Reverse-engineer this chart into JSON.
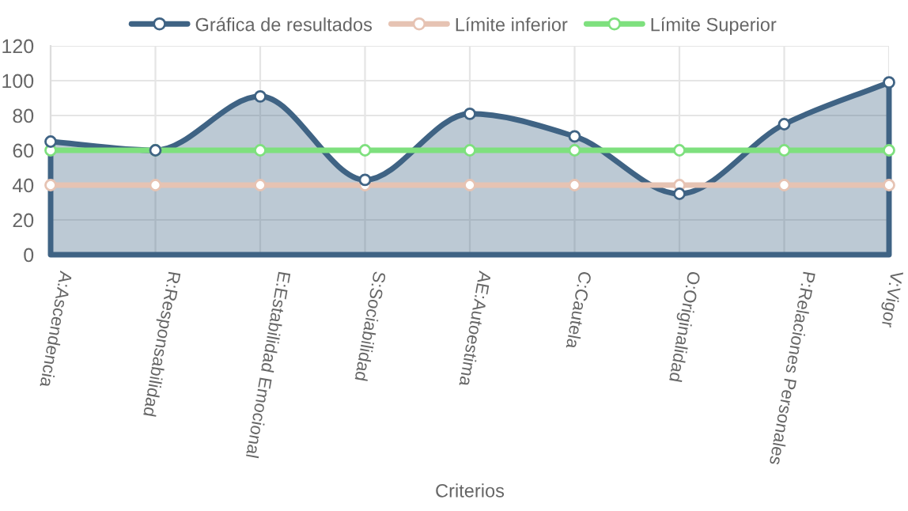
{
  "chart_data": {
    "type": "line",
    "xlabel": "Criterios",
    "categories": [
      "A:Ascendencia",
      "R:Responsabilidad",
      "E:Estabilidad Emocional",
      "S:Sociabilidad",
      "AE:Autoestima",
      "C:Cautela",
      "O:Originalidad",
      "P:Relaciones Personales",
      "V:Vigor"
    ],
    "series": [
      {
        "name": "Gráfica de resultados",
        "type": "area",
        "color": "#3f6384",
        "values": [
          65,
          60,
          91,
          43,
          81,
          68,
          35,
          75,
          99
        ]
      },
      {
        "name": "Límite inferior",
        "color": "#e6c3b3",
        "values": [
          40,
          40,
          40,
          40,
          40,
          40,
          40,
          40,
          40
        ]
      },
      {
        "name": "Límite Superior",
        "color": "#7ee07e",
        "values": [
          60,
          60,
          60,
          60,
          60,
          60,
          60,
          60,
          60
        ]
      }
    ],
    "ylim": [
      0,
      120
    ],
    "yticks": [
      0,
      20,
      40,
      60,
      80,
      100,
      120
    ],
    "grid": true,
    "legend": "top",
    "marker": "circle"
  }
}
